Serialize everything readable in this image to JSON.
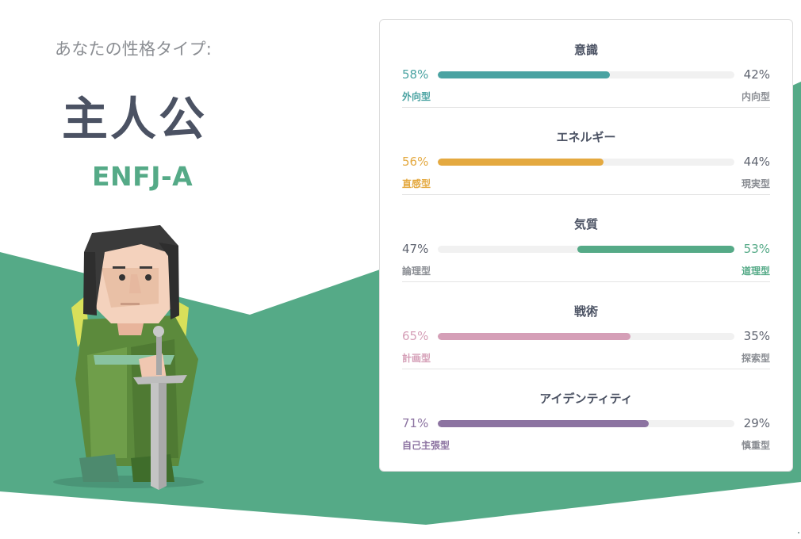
{
  "header": {
    "kicker": "あなたの性格タイプ:",
    "type_name": "主人公",
    "type_code": "ENFJ-A"
  },
  "colors": {
    "background_green": "#55aa87",
    "title_dark": "#4b5263"
  },
  "avatar": {
    "icon": "protagonist-avatar-icon"
  },
  "traits": [
    {
      "title": "意識",
      "left_pct": "58%",
      "right_pct": "42%",
      "left_label": "外向型",
      "right_label": "内向型",
      "dominant": "left",
      "value": 58,
      "color": "#4aa3a2"
    },
    {
      "title": "エネルギー",
      "left_pct": "56%",
      "right_pct": "44%",
      "left_label": "直感型",
      "right_label": "現実型",
      "dominant": "left",
      "value": 56,
      "color": "#e4a940"
    },
    {
      "title": "気質",
      "left_pct": "47%",
      "right_pct": "53%",
      "left_label": "論理型",
      "right_label": "道理型",
      "dominant": "right",
      "value": 53,
      "color": "#55aa87"
    },
    {
      "title": "戦術",
      "left_pct": "65%",
      "right_pct": "35%",
      "left_label": "計画型",
      "right_label": "探索型",
      "dominant": "left",
      "value": 65,
      "color": "#d59fb7"
    },
    {
      "title": "アイデンティティ",
      "left_pct": "71%",
      "right_pct": "29%",
      "left_label": "自己主張型",
      "right_label": "慎重型",
      "dominant": "left",
      "value": 71,
      "color": "#8c73a1"
    }
  ]
}
